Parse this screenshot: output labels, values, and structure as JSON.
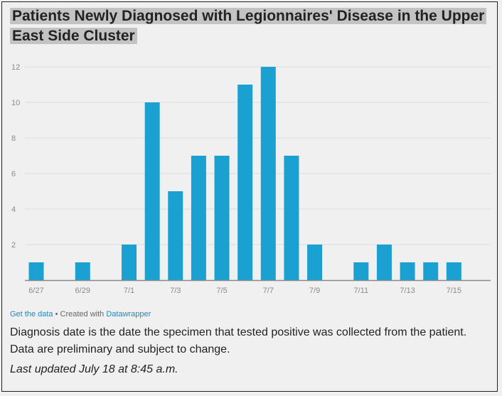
{
  "chart_data": {
    "type": "bar",
    "title": "Patients Newly Diagnosed with Legionnaires' Disease in the Upper East Side Cluster",
    "categories": [
      "6/27",
      "6/28",
      "6/29",
      "6/30",
      "7/1",
      "7/2",
      "7/3",
      "7/4",
      "7/5",
      "7/6",
      "7/7",
      "7/8",
      "7/9",
      "7/10",
      "7/11",
      "7/12",
      "7/13",
      "7/14",
      "7/15"
    ],
    "values": [
      1,
      0,
      1,
      0,
      2,
      10,
      5,
      7,
      7,
      11,
      12,
      7,
      2,
      0,
      1,
      2,
      1,
      1,
      1
    ],
    "x_tick_labels": [
      "6/27",
      "6/29",
      "7/1",
      "7/3",
      "7/5",
      "7/7",
      "7/9",
      "7/11",
      "7/13",
      "7/15"
    ],
    "y_ticks": [
      2,
      4,
      6,
      8,
      10,
      12
    ],
    "ylim": [
      0,
      12
    ],
    "grid": true,
    "bar_color": "#1ba1d1"
  },
  "footer": {
    "get_data": "Get the data",
    "separator": " • Created with ",
    "tool": "Datawrapper",
    "description": "Diagnosis date is the date the specimen that tested positive was collected from the patient. Data are preliminary and subject to change.",
    "updated": "Last updated July 18 at 8:45 a.m."
  }
}
